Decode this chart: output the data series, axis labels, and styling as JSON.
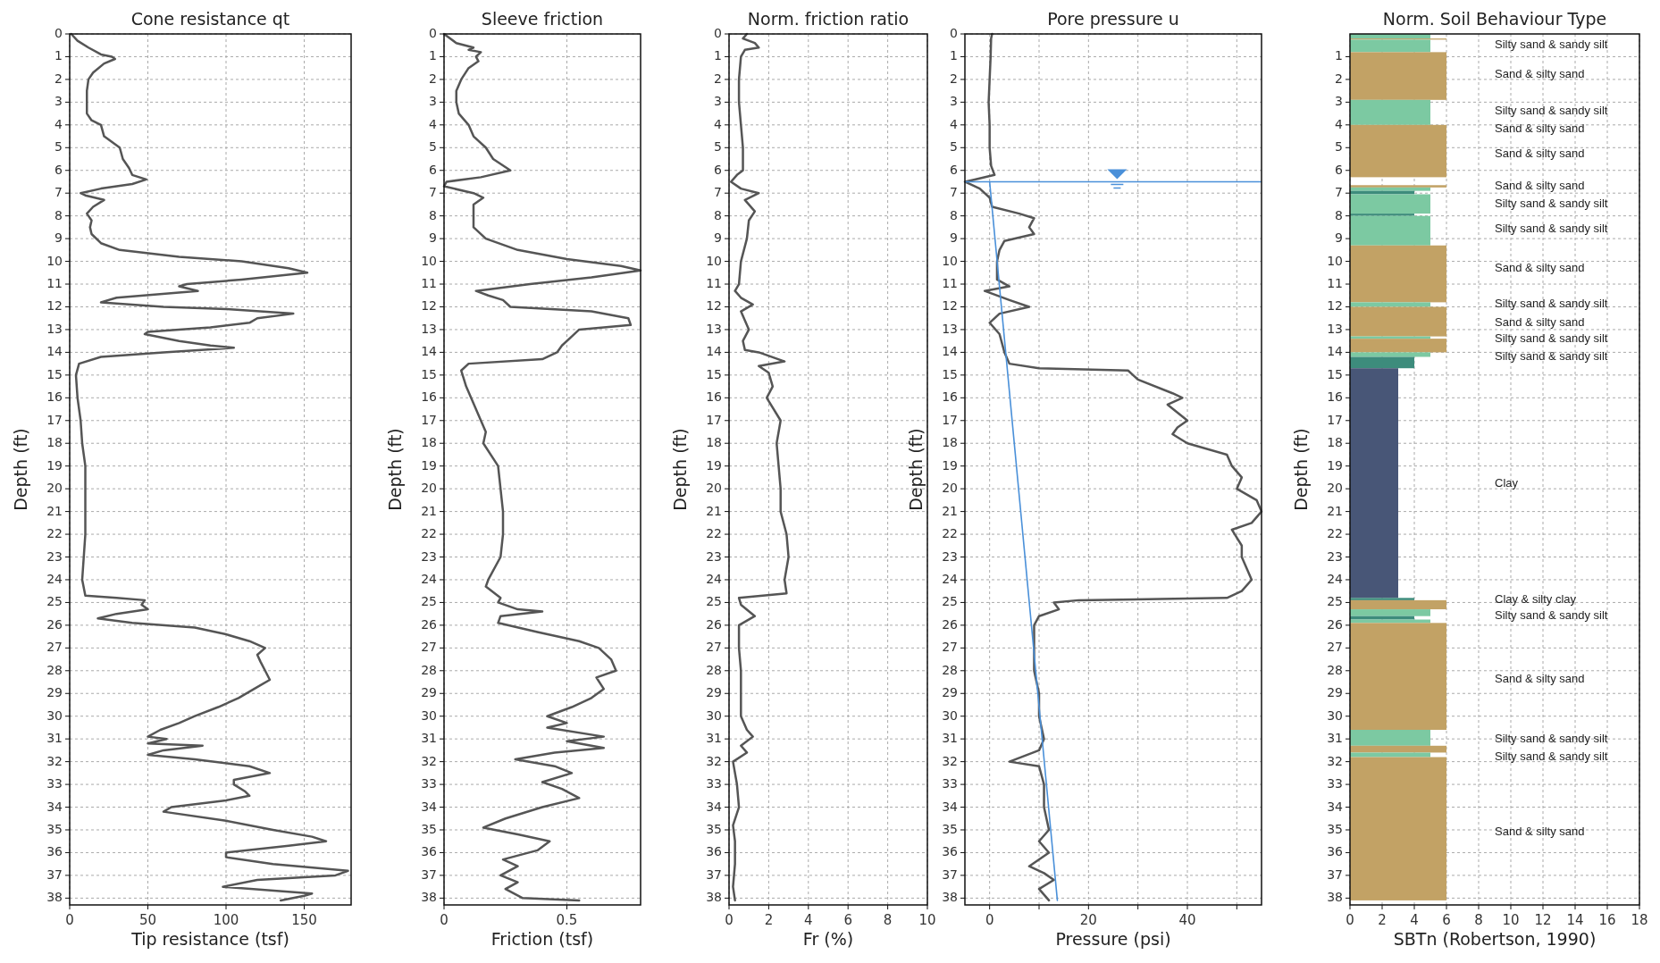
{
  "chart_data": [
    {
      "type": "line",
      "title": "Cone resistance qt",
      "xlabel": "Tip resistance (tsf)",
      "ylabel": "Depth (ft)",
      "xlim": [
        0,
        180
      ],
      "xticks": [
        0,
        50,
        100,
        150
      ],
      "ylim": [
        38.3,
        0
      ],
      "yticks": [
        0,
        1,
        2,
        3,
        4,
        5,
        6,
        7,
        8,
        9,
        10,
        11,
        12,
        13,
        14,
        15,
        16,
        17,
        18,
        19,
        20,
        21,
        22,
        23,
        24,
        25,
        26,
        27,
        28,
        29,
        30,
        31,
        32,
        33,
        34,
        35,
        36,
        37,
        38
      ],
      "grid": true,
      "series": [
        {
          "color": "#555555",
          "x": [
            1,
            5,
            12,
            20,
            27,
            29,
            22,
            15,
            12,
            11,
            11,
            11,
            14,
            20,
            22,
            32,
            34,
            38,
            40,
            49,
            40,
            20,
            7,
            10,
            22,
            15,
            11,
            14,
            13,
            14,
            20,
            32,
            70,
            110,
            140,
            152,
            110,
            75,
            70,
            82,
            30,
            20,
            60,
            100,
            143,
            120,
            115,
            90,
            50,
            48,
            70,
            90,
            105,
            60,
            20,
            6,
            4,
            5,
            7,
            8,
            10,
            10,
            10,
            10,
            9,
            8,
            10,
            30,
            48,
            46,
            50,
            30,
            18,
            40,
            80,
            100,
            115,
            125,
            120,
            122,
            125,
            128,
            118,
            108,
            95,
            80,
            70,
            58,
            50,
            62,
            50,
            85,
            60,
            50,
            80,
            115,
            128,
            105,
            105,
            112,
            115,
            100,
            65,
            60,
            100,
            130,
            155,
            164,
            140,
            100,
            100,
            130,
            178,
            170,
            120,
            98,
            155,
            150,
            135
          ],
          "values": [
            0,
            0.3,
            0.6,
            0.9,
            1,
            1.1,
            1.3,
            1.7,
            2,
            2.5,
            3,
            3.5,
            3.8,
            4,
            4.5,
            5,
            5.5,
            5.9,
            6.2,
            6.4,
            6.6,
            6.8,
            7,
            7.1,
            7.3,
            7.6,
            7.9,
            8.2,
            8.5,
            8.8,
            9.2,
            9.5,
            9.8,
            10,
            10.3,
            10.5,
            10.8,
            11,
            11.1,
            11.3,
            11.6,
            11.8,
            12,
            12.1,
            12.3,
            12.5,
            12.7,
            12.9,
            13.1,
            13.2,
            13.5,
            13.7,
            13.8,
            14,
            14.2,
            14.5,
            15,
            16,
            17,
            18,
            19,
            20,
            21,
            22,
            23,
            24,
            24.7,
            24.8,
            24.9,
            25.1,
            25.3,
            25.5,
            25.7,
            25.9,
            26.1,
            26.4,
            26.7,
            27,
            27.3,
            27.6,
            28,
            28.4,
            28.8,
            29.2,
            29.6,
            30,
            30.3,
            30.6,
            30.9,
            31,
            31.2,
            31.3,
            31.5,
            31.7,
            31.9,
            32.2,
            32.5,
            32.8,
            33,
            33.3,
            33.5,
            33.7,
            34,
            34.2,
            34.6,
            35,
            35.3,
            35.5,
            35.7,
            36,
            36.2,
            36.5,
            36.8,
            37,
            37.2,
            37.5,
            37.8,
            37.9,
            38.1
          ]
        }
      ]
    },
    {
      "type": "line",
      "title": "Sleeve friction",
      "xlabel": "Friction (tsf)",
      "ylabel": "Depth (ft)",
      "xlim": [
        0,
        0.8
      ],
      "xticks": [
        0,
        0.5
      ],
      "ylim": [
        38.3,
        0
      ],
      "yticks": [
        0,
        1,
        2,
        3,
        4,
        5,
        6,
        7,
        8,
        9,
        10,
        11,
        12,
        13,
        14,
        15,
        16,
        17,
        18,
        19,
        20,
        21,
        22,
        23,
        24,
        25,
        26,
        27,
        28,
        29,
        30,
        31,
        32,
        33,
        34,
        35,
        36,
        37,
        38
      ],
      "grid": true,
      "series": [
        {
          "color": "#555555",
          "x": [
            0,
            0.05,
            0.12,
            0.1,
            0.15,
            0.13,
            0.14,
            0.1,
            0.07,
            0.05,
            0.05,
            0.06,
            0.1,
            0.12,
            0.17,
            0.2,
            0.27,
            0.15,
            0.01,
            0,
            0.12,
            0.16,
            0.12,
            0.12,
            0.12,
            0.17,
            0.3,
            0.5,
            0.72,
            0.8,
            0.6,
            0.35,
            0.13,
            0.18,
            0.24,
            0.27,
            0.6,
            0.75,
            0.76,
            0.55,
            0.52,
            0.48,
            0.46,
            0.4,
            0.1,
            0.07,
            0.09,
            0.13,
            0.17,
            0.16,
            0.22,
            0.23,
            0.24,
            0.24,
            0.23,
            0.18,
            0.17,
            0.23,
            0.22,
            0.3,
            0.4,
            0.23,
            0.22,
            0.38,
            0.55,
            0.63,
            0.68,
            0.7,
            0.62,
            0.65,
            0.6,
            0.52,
            0.42,
            0.5,
            0.42,
            0.65,
            0.5,
            0.65,
            0.45,
            0.29,
            0.45,
            0.52,
            0.4,
            0.48,
            0.55,
            0.4,
            0.25,
            0.16,
            0.3,
            0.43,
            0.38,
            0.24,
            0.3,
            0.23,
            0.3,
            0.25,
            0.32,
            0.55
          ],
          "values": [
            0,
            0.4,
            0.6,
            0.7,
            0.8,
            1,
            1.2,
            1.5,
            2,
            2.5,
            3,
            3.5,
            4,
            4.5,
            5,
            5.5,
            6,
            6.3,
            6.5,
            6.7,
            7,
            7.2,
            7.5,
            8,
            8.5,
            9,
            9.5,
            9.9,
            10.2,
            10.4,
            10.7,
            11,
            11.3,
            11.5,
            11.7,
            12,
            12.2,
            12.5,
            12.8,
            13,
            13.3,
            13.7,
            14,
            14.3,
            14.5,
            14.8,
            15.5,
            16.5,
            17.5,
            18,
            19,
            20,
            21,
            22,
            23,
            24,
            24.3,
            24.8,
            25,
            25.3,
            25.4,
            25.6,
            25.9,
            26.3,
            26.7,
            27,
            27.5,
            28,
            28.3,
            28.8,
            29.2,
            29.6,
            30,
            30.3,
            30.5,
            30.9,
            31.1,
            31.4,
            31.6,
            31.9,
            32.2,
            32.5,
            32.9,
            33.2,
            33.6,
            34,
            34.5,
            34.9,
            35.2,
            35.5,
            35.9,
            36.3,
            36.6,
            37,
            37.3,
            37.6,
            38,
            38.1
          ]
        }
      ]
    },
    {
      "type": "line",
      "title": "Norm. friction ratio",
      "xlabel": "Fr (%)",
      "ylabel": "Depth (ft)",
      "xlim": [
        0,
        10
      ],
      "xticks": [
        0,
        2,
        4,
        6,
        8,
        10
      ],
      "ylim": [
        38.3,
        0
      ],
      "yticks": [
        0,
        1,
        2,
        3,
        4,
        5,
        6,
        7,
        8,
        9,
        10,
        11,
        12,
        13,
        14,
        15,
        16,
        17,
        18,
        19,
        20,
        21,
        22,
        23,
        24,
        25,
        26,
        27,
        28,
        29,
        30,
        31,
        32,
        33,
        34,
        35,
        36,
        37,
        38
      ],
      "grid": true,
      "series": [
        {
          "color": "#555555",
          "x": [
            0.9,
            0.7,
            1.3,
            1.5,
            0.8,
            0.6,
            0.5,
            0.5,
            0.6,
            0.7,
            0.7,
            0.4,
            0.1,
            0.6,
            1.5,
            0.8,
            1.3,
            1,
            0.9,
            0.6,
            0.5,
            0.3,
            0.6,
            1.2,
            0.6,
            1,
            0.7,
            0.8,
            1.5,
            2.8,
            1.5,
            2,
            2.2,
            1.9,
            2.6,
            2.4,
            2.5,
            2.6,
            2.6,
            2.9,
            3,
            2.8,
            2.9,
            0.5,
            0.6,
            1.3,
            0.5,
            0.5,
            0.6,
            0.6,
            0.6,
            0.9,
            1.2,
            0.6,
            0.9,
            0.2,
            0.4,
            0.5,
            0.2,
            0.3,
            0.3,
            0.2,
            0.3
          ],
          "values": [
            0,
            0.2,
            0.4,
            0.6,
            0.7,
            1,
            2,
            3,
            4,
            5,
            6,
            6.2,
            6.5,
            6.8,
            7,
            7.3,
            7.8,
            8.2,
            9,
            10,
            11,
            11.3,
            11.6,
            11.9,
            12.2,
            13,
            13.5,
            13.9,
            14,
            14.4,
            14.6,
            14.9,
            15.5,
            16,
            17,
            18,
            19,
            20,
            21,
            22,
            23,
            24,
            24.6,
            24.8,
            25.1,
            25.6,
            26,
            27,
            28,
            29,
            30,
            30.6,
            30.9,
            31.3,
            31.6,
            32,
            33,
            34,
            34.8,
            35.5,
            36.5,
            37.5,
            38.1
          ]
        }
      ]
    },
    {
      "type": "line",
      "title": "Pore pressure u",
      "xlabel": "Pressure (psi)",
      "ylabel": "Depth (ft)",
      "xlim": [
        -5,
        55
      ],
      "xticks": [
        0,
        {
          "value": 10,
          "label": null
        },
        20,
        {
          "value": 30,
          "label": null
        },
        40,
        {
          "value": 50,
          "label": null
        }
      ],
      "ylim": [
        38.3,
        0
      ],
      "yticks": [
        0,
        1,
        2,
        3,
        4,
        5,
        6,
        7,
        8,
        9,
        10,
        11,
        12,
        13,
        14,
        15,
        16,
        17,
        18,
        19,
        20,
        21,
        22,
        23,
        24,
        25,
        26,
        27,
        28,
        29,
        30,
        31,
        32,
        33,
        34,
        35,
        36,
        37,
        38
      ],
      "grid": true,
      "ref_lines": [
        {
          "axis": "y",
          "value": 6.5,
          "color": "#4a90d9"
        }
      ],
      "series": [
        {
          "color": "#555555",
          "x": [
            0.5,
            0.3,
            0.2,
            0,
            -0.2,
            0,
            0,
            0.3,
            1,
            -3,
            -5,
            -2,
            0,
            0.5,
            6,
            9,
            8,
            9,
            3,
            2,
            1.5,
            1.5,
            4,
            -1,
            4,
            8,
            2,
            0,
            2,
            3,
            4,
            10,
            28,
            30,
            37,
            39,
            36,
            40,
            38,
            37,
            40,
            48,
            49,
            51,
            50,
            54,
            55,
            53,
            49,
            51,
            51,
            52,
            53,
            51,
            48,
            18,
            13,
            14,
            10,
            9,
            9,
            9,
            10,
            10,
            11,
            10,
            4,
            10,
            11,
            11,
            12,
            10,
            12,
            8,
            11,
            13,
            10,
            12
          ],
          "values": [
            0,
            0.2,
            1,
            2,
            3,
            4,
            5,
            5.8,
            6.2,
            6.4,
            6.5,
            6.8,
            7.2,
            7.6,
            7.9,
            8.1,
            8.5,
            8.8,
            9.1,
            9.5,
            10,
            10.8,
            11.1,
            11.3,
            11.7,
            12,
            12.3,
            12.7,
            13.2,
            14,
            14.5,
            14.7,
            14.8,
            15.2,
            15.8,
            16,
            16.3,
            17,
            17.3,
            17.6,
            18,
            18.5,
            19,
            19.5,
            20,
            20.5,
            21,
            21.5,
            21.8,
            22.5,
            23,
            23.5,
            24,
            24.5,
            24.8,
            24.9,
            25,
            25.3,
            25.6,
            26,
            27,
            28,
            29,
            30,
            31,
            31.5,
            32,
            32.2,
            33,
            34,
            35,
            35.5,
            36,
            36.6,
            36.9,
            37.2,
            37.6,
            38.1
          ]
        },
        {
          "color": "#4a90d9",
          "x": [
            0,
            13.7
          ],
          "values": [
            6.5,
            38.1
          ]
        }
      ]
    },
    {
      "type": "histogram",
      "orientation": "horizontal",
      "title": "Norm. Soil Behaviour Type",
      "xlabel": "SBTn (Robertson, 1990)",
      "ylabel": "Depth (ft)",
      "xlim": [
        0,
        18
      ],
      "xticks": [
        0,
        2,
        4,
        6,
        8,
        10,
        12,
        14,
        16,
        18
      ],
      "ylim": [
        38.3,
        0
      ],
      "yticks": [
        1,
        2,
        3,
        4,
        5,
        6,
        7,
        8,
        9,
        10,
        11,
        12,
        13,
        14,
        15,
        16,
        17,
        18,
        19,
        20,
        21,
        22,
        23,
        24,
        25,
        26,
        27,
        28,
        29,
        30,
        31,
        32,
        33,
        34,
        35,
        36,
        37,
        38
      ],
      "grid": true,
      "bins": [
        0,
        0.2,
        0.25,
        0.8,
        2.9,
        4,
        6.3,
        6.65,
        6.75,
        6.9,
        7.05,
        7.9,
        8,
        9.3,
        11.8,
        12,
        13.3,
        13.4,
        14,
        14.2,
        14.7,
        24.8,
        24.9,
        25.3,
        25.6,
        25.75,
        25.9,
        30.6,
        31.3,
        31.6,
        31.8,
        38.1
      ],
      "values": [
        5,
        6,
        5,
        6,
        5,
        6,
        0,
        6,
        5,
        4,
        5,
        4,
        5,
        6,
        5,
        6,
        5,
        6,
        5,
        4,
        3,
        4,
        6,
        5,
        4,
        5,
        6,
        5,
        6,
        5,
        6
      ],
      "colors": [
        "#7cc9a2",
        "#c2a265",
        "#7cc9a2",
        "#c2a265",
        "#7cc9a2",
        "#c2a265",
        "#ffffff",
        "#c2a265",
        "#7cc9a2",
        "#3d8c7c",
        "#7cc9a2",
        "#3d8c7c",
        "#7cc9a2",
        "#c2a265",
        "#7cc9a2",
        "#c2a265",
        "#7cc9a2",
        "#c2a265",
        "#7cc9a2",
        "#3d8c7c",
        "#485677",
        "#3d8c7c",
        "#c2a265",
        "#7cc9a2",
        "#3d8c7c",
        "#7cc9a2",
        "#c2a265",
        "#7cc9a2",
        "#c2a265",
        "#7cc9a2",
        "#c2a265"
      ],
      "annotations": [
        "Silty sand & sandy silt",
        "Sand & silty sand",
        "Silty sand & sandy silt",
        "Sand & silty sand",
        "Sand & silty sand",
        "Sand & silty sand",
        "Silty sand & sandy silt",
        "Silty sand & sandy silt",
        "Sand & silty sand",
        "Silty sand & sandy silt",
        "Sand & silty sand",
        "Silty sand & sandy silt",
        "Silty sand & sandy silt",
        "Clay",
        "Clay & silty clay",
        "Silty sand & sandy silt",
        "Sand & silty sand",
        "Silty sand & sandy silt",
        "Silty sand & sandy silt",
        "Sand & silty sand"
      ]
    }
  ]
}
